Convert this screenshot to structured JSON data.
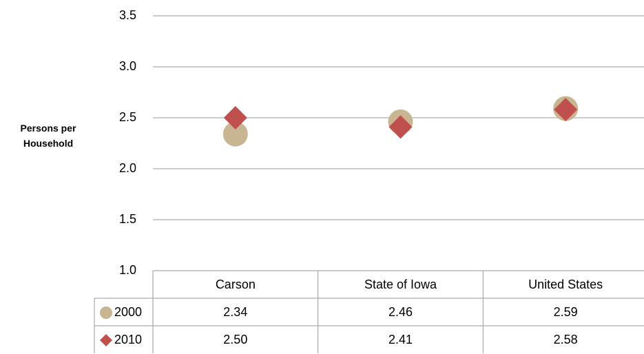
{
  "chart_data": {
    "type": "scatter",
    "y_label": "Persons per Household",
    "categories": [
      "Carson",
      "State of Iowa",
      "United States"
    ],
    "series": [
      {
        "name": "2000",
        "color": "#c8b591",
        "marker": "circle",
        "values": [
          2.34,
          2.46,
          2.59
        ],
        "value_labels": [
          "2.34",
          "2.46",
          "2.59"
        ]
      },
      {
        "name": "2010",
        "color": "#c0504d",
        "marker": "diamond",
        "values": [
          2.5,
          2.41,
          2.58
        ],
        "value_labels": [
          "2.50",
          "2.41",
          "2.58"
        ]
      }
    ],
    "ylim": [
      1.0,
      3.5
    ],
    "yticks": [
      {
        "value": 1,
        "label": "1.0"
      },
      1.5,
      {
        "value": 2,
        "label": "2.0"
      },
      2.5,
      {
        "value": 3,
        "label": "3.0"
      },
      3.5
    ],
    "grid": true,
    "legend": "table"
  }
}
